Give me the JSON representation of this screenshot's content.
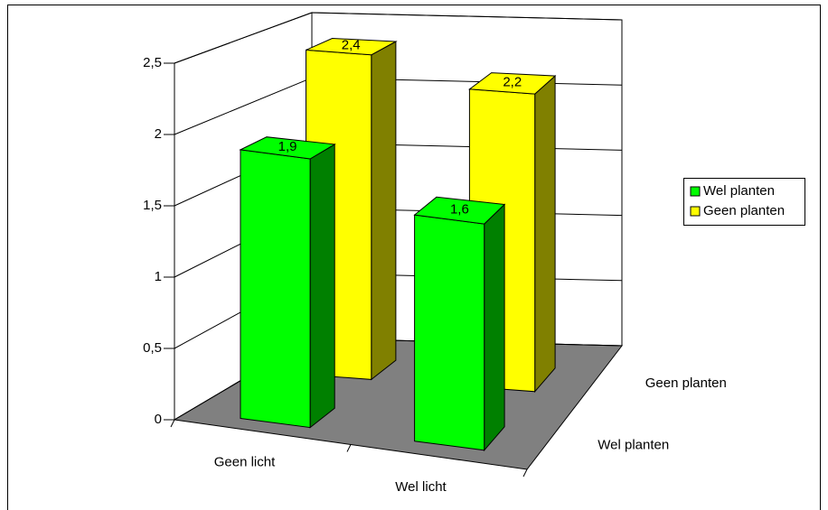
{
  "chart_data": {
    "type": "bar3d",
    "categories": [
      "Geen licht",
      "Wel licht"
    ],
    "series": [
      {
        "name": "Wel planten",
        "color": "#00ff00",
        "side": "#008000",
        "values": [
          1.9,
          1.6
        ],
        "value_labels": [
          "1,9",
          "1,6"
        ]
      },
      {
        "name": "Geen planten",
        "color": "#ffff00",
        "side": "#808000",
        "values": [
          2.4,
          2.2
        ],
        "value_labels": [
          "2,4",
          "2,2"
        ]
      }
    ],
    "ylim": [
      0,
      2.5
    ],
    "yticks": [
      0,
      {
        "value": 0.5,
        "label": "0,5"
      },
      1,
      {
        "value": 1.5,
        "label": "1,5"
      },
      2,
      {
        "value": 2.5,
        "label": "2,5"
      }
    ],
    "grid": true,
    "legend": "right",
    "floor_color": "#808080"
  }
}
